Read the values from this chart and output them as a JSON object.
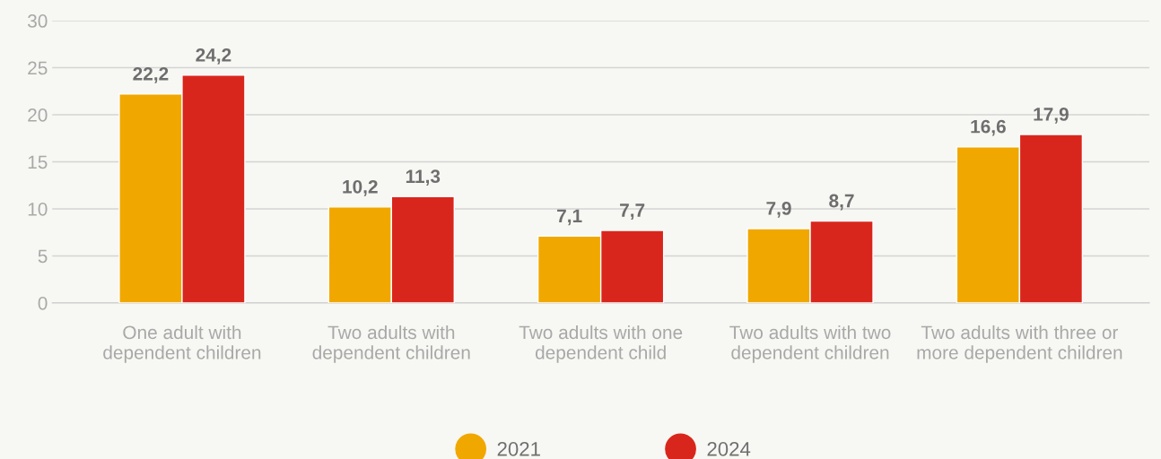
{
  "chart_data": {
    "type": "bar",
    "categories": [
      "One adult with\ndependent children",
      "Two adults with\ndependent children",
      "Two adults with one\ndependent child",
      "Two adults with two\ndependent children",
      "Two adults with three or\nmore dependent children"
    ],
    "series": [
      {
        "name": "2021",
        "color": "#f0a800",
        "values": [
          22.2,
          10.2,
          7.1,
          7.9,
          16.6
        ],
        "value_labels": [
          "22,2",
          "10,2",
          "7,1",
          "7,9",
          "16,6"
        ]
      },
      {
        "name": "2024",
        "color": "#d9261c",
        "values": [
          24.2,
          11.3,
          7.7,
          8.7,
          17.9
        ],
        "value_labels": [
          "24,2",
          "11,3",
          "7,7",
          "8,7",
          "17,9"
        ]
      }
    ],
    "ylim": [
      0,
      30
    ],
    "yticks": [
      0,
      5,
      10,
      15,
      20,
      25,
      30
    ],
    "grid": "y",
    "legend": "bottom"
  }
}
